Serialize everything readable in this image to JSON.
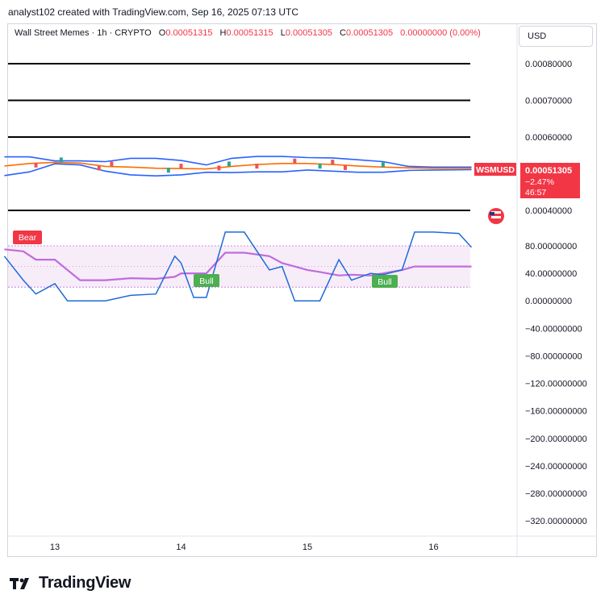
{
  "header": {
    "credit": "analyst102 created with TradingView.com, Sep 16, 2025 07:13 UTC"
  },
  "legend": {
    "symbol": "Wall Street Memes · 1h · CRYPTO",
    "o_label": "O",
    "o_value": "0.00051315",
    "h_label": "H",
    "h_value": "0.00051315",
    "l_label": "L",
    "l_value": "0.00051305",
    "c_label": "C",
    "c_value": "0.00051305",
    "change": "0.00000000 (0.00%)"
  },
  "currency": "USD",
  "price_tag": {
    "ticker": "WSMUSD",
    "price": "0.00051305",
    "change_pct": "−2.47%",
    "countdown": "46:57"
  },
  "badges": {
    "bear": "Bear",
    "bull_1": "Bull",
    "bull_2": "Bull"
  },
  "brand": {
    "name": "TradingView"
  },
  "colors": {
    "upper_band": "#2962ff",
    "lower_band": "#2962ff",
    "middle": "#ff6d00",
    "stoch_k": "#1e6bd6",
    "stoch_d": "#c06be0",
    "bear": "#f23645",
    "bull": "#4caf50",
    "tag": "#f23645",
    "levels": "#000000"
  },
  "chart_data": {
    "type": "line",
    "price_axis": {
      "ticks": [
        0.0008,
        0.0007,
        0.0006,
        0.0004
      ],
      "tick_labels": [
        "0.00080000",
        "0.00070000",
        "0.00060000",
        "0.00040000"
      ]
    },
    "horizontal_levels": [
      0.0008,
      0.0007,
      0.0006,
      0.0004
    ],
    "x_axis": {
      "ticks": [
        13,
        14,
        15,
        16
      ],
      "tick_labels": [
        "13",
        "14",
        "15",
        "16"
      ]
    },
    "bollinger": {
      "x": [
        12.6,
        12.8,
        13.0,
        13.2,
        13.4,
        13.6,
        13.8,
        14.0,
        14.2,
        14.4,
        14.6,
        14.8,
        15.0,
        15.2,
        15.4,
        15.6,
        15.8,
        16.0,
        16.3
      ],
      "upper": [
        0.000546,
        0.000546,
        0.000535,
        0.000535,
        0.000533,
        0.000542,
        0.000542,
        0.000536,
        0.000524,
        0.000542,
        0.000547,
        0.000547,
        0.000544,
        0.000543,
        0.000538,
        0.000533,
        0.00052,
        0.000518,
        0.000518
      ],
      "middle": [
        0.000521,
        0.000528,
        0.000531,
        0.000529,
        0.00052,
        0.000518,
        0.000515,
        0.000514,
        0.000513,
        0.00052,
        0.000525,
        0.000528,
        0.000528,
        0.000525,
        0.000521,
        0.000518,
        0.000516,
        0.000515,
        0.000515
      ],
      "lower": [
        0.000495,
        0.000505,
        0.000527,
        0.000524,
        0.000507,
        0.000497,
        0.000494,
        0.000497,
        0.000504,
        0.000503,
        0.000505,
        0.000505,
        0.00051,
        0.000507,
        0.000504,
        0.000504,
        0.000509,
        0.00051,
        0.000511
      ]
    },
    "oscillator_axis": {
      "ticks": [
        80,
        40,
        0,
        -40,
        -80,
        -120,
        -160,
        -200,
        -240,
        -280,
        -320
      ],
      "tick_labels": [
        "80.00000000",
        "40.00000000",
        "0.00000000",
        "−40.00000000",
        "−80.00000000",
        "−120.00000000",
        "−160.00000000",
        "−200.00000000",
        "−240.00000000",
        "−280.00000000",
        "−320.00000000"
      ],
      "band_upper": 80,
      "band_lower": 20
    },
    "stochastic": {
      "x": [
        12.6,
        12.75,
        12.85,
        13.0,
        13.1,
        13.2,
        13.4,
        13.6,
        13.8,
        13.95,
        14.0,
        14.1,
        14.2,
        14.35,
        14.5,
        14.7,
        14.8,
        14.9,
        15.0,
        15.1,
        15.25,
        15.35,
        15.5,
        15.6,
        15.75,
        15.85,
        16.0,
        16.2,
        16.3
      ],
      "k": [
        65,
        30,
        10,
        25,
        0,
        0,
        0,
        8,
        10,
        65,
        55,
        5,
        5,
        100,
        100,
        45,
        50,
        0,
        0,
        0,
        60,
        30,
        40,
        38,
        45,
        100,
        100,
        98,
        78
      ],
      "d": [
        75,
        72,
        60,
        60,
        45,
        30,
        30,
        33,
        32,
        35,
        40,
        40,
        40,
        70,
        70,
        65,
        55,
        50,
        45,
        42,
        37,
        38,
        37,
        40,
        45,
        50,
        50,
        50,
        50
      ]
    }
  }
}
